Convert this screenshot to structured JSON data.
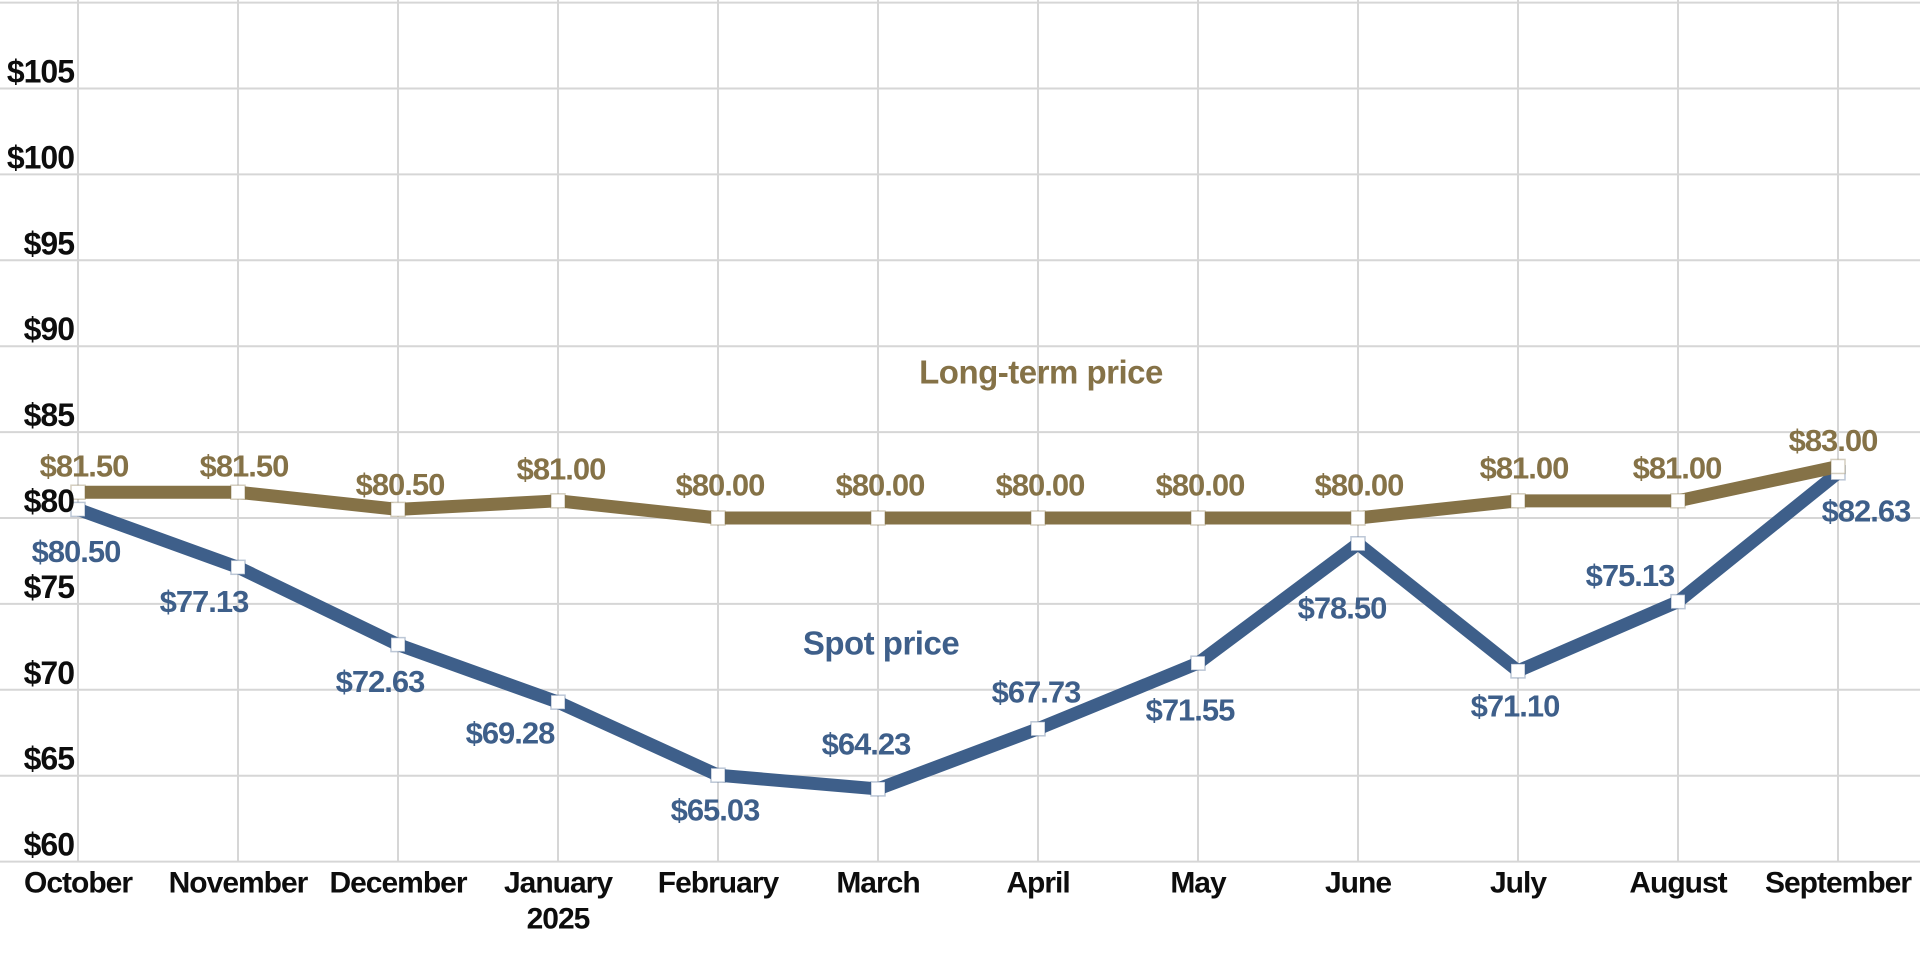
{
  "chart_data": {
    "type": "line",
    "title": "",
    "categories": [
      "October",
      "November",
      "December",
      "January",
      "February",
      "March",
      "April",
      "May",
      "June",
      "July",
      "August",
      "September"
    ],
    "category_sub_labels": [
      {
        "index": 3,
        "text": "2025"
      }
    ],
    "y_axis": {
      "tick_labels": [
        "$105",
        "$100",
        "$95",
        "$90",
        "$85",
        "$80",
        "$75",
        "$70",
        "$65",
        "$60"
      ],
      "tick_values": [
        105,
        100,
        95,
        90,
        85,
        80,
        75,
        70,
        65,
        60
      ],
      "range": [
        60,
        110
      ],
      "grid": true,
      "grid_step": 5
    },
    "x_axis": {
      "grid": true
    },
    "series": [
      {
        "name": "Spot price",
        "color": "#3E5F8A",
        "line_width": 13,
        "values": [
          80.5,
          77.13,
          72.63,
          69.28,
          65.03,
          64.23,
          67.73,
          71.55,
          78.5,
          71.1,
          75.13,
          82.63
        ],
        "point_labels": [
          "$80.50",
          "$77.13",
          "$72.63",
          "$69.28",
          "$65.03",
          "$64.23",
          "$67.73",
          "$71.55",
          "$78.50",
          "$71.10",
          "$75.13",
          "$82.63"
        ],
        "label_offsets": [
          [
            -2,
            42
          ],
          [
            -34,
            34
          ],
          [
            -18,
            37
          ],
          [
            -48,
            31
          ],
          [
            -3,
            35
          ],
          [
            -12,
            -45
          ],
          [
            -2,
            -37
          ],
          [
            -8,
            47
          ],
          [
            -16,
            64
          ],
          [
            -3,
            35
          ],
          [
            -48,
            -26
          ],
          [
            28,
            38
          ]
        ],
        "annotation": {
          "text": "Spot price",
          "x": 881,
          "y": 643
        }
      },
      {
        "name": "Long-term price",
        "color": "#857247",
        "line_width": 13,
        "values": [
          81.5,
          81.5,
          80.5,
          81.0,
          80.0,
          80.0,
          80.0,
          80.0,
          80.0,
          81.0,
          81.0,
          83.0
        ],
        "point_labels": [
          "$81.50",
          "$81.50",
          "$80.50",
          "$81.00",
          "$80.00",
          "$80.00",
          "$80.00",
          "$80.00",
          "$80.00",
          "$81.00",
          "$81.00",
          "$83.00"
        ],
        "label_offsets": [
          [
            6,
            -26
          ],
          [
            6,
            -26
          ],
          [
            2,
            -25
          ],
          [
            3,
            -32
          ],
          [
            2,
            -33
          ],
          [
            2,
            -33
          ],
          [
            2,
            -33
          ],
          [
            2,
            -33
          ],
          [
            1,
            -33
          ],
          [
            6,
            -33
          ],
          [
            -1,
            -33
          ],
          [
            -5,
            -26
          ]
        ],
        "annotation": {
          "text": "Long-term price",
          "x": 1041,
          "y": 372
        }
      }
    ],
    "legend_position": "inline-annotations",
    "background": "#FFFFFF",
    "grid_color": "#D6D6D6",
    "axis_text_color": "#0D0D0D",
    "marker": {
      "shape": "square",
      "size": 14,
      "fill": "#FFFFFF"
    }
  }
}
